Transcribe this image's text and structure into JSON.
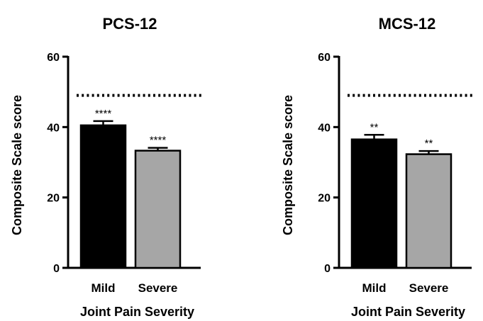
{
  "chart_data": [
    {
      "type": "bar",
      "title": "PCS-12",
      "xlabel": "Joint Pain Severity",
      "ylabel": "Composite Scale score",
      "ylim": [
        0,
        60
      ],
      "yticks": [
        0,
        20,
        40,
        60
      ],
      "categories": [
        "Mild",
        "Severe"
      ],
      "values": [
        40.5,
        33.3
      ],
      "errors": [
        1.2,
        0.8
      ],
      "significance": [
        "****",
        "****"
      ],
      "bar_colors": [
        "#000000",
        "#a6a6a6"
      ],
      "reference_line": {
        "value": 49,
        "style": "dotted"
      },
      "grid": false
    },
    {
      "type": "bar",
      "title": "MCS-12",
      "xlabel": "Joint Pain Severity",
      "ylabel": "Composite Scale score",
      "ylim": [
        0,
        60
      ],
      "yticks": [
        0,
        20,
        40,
        60
      ],
      "categories": [
        "Mild",
        "Severe"
      ],
      "values": [
        36.5,
        32.3
      ],
      "errors": [
        1.3,
        0.9
      ],
      "significance": [
        "**",
        "**"
      ],
      "bar_colors": [
        "#000000",
        "#a6a6a6"
      ],
      "reference_line": {
        "value": 49,
        "style": "dotted"
      },
      "grid": false
    }
  ]
}
